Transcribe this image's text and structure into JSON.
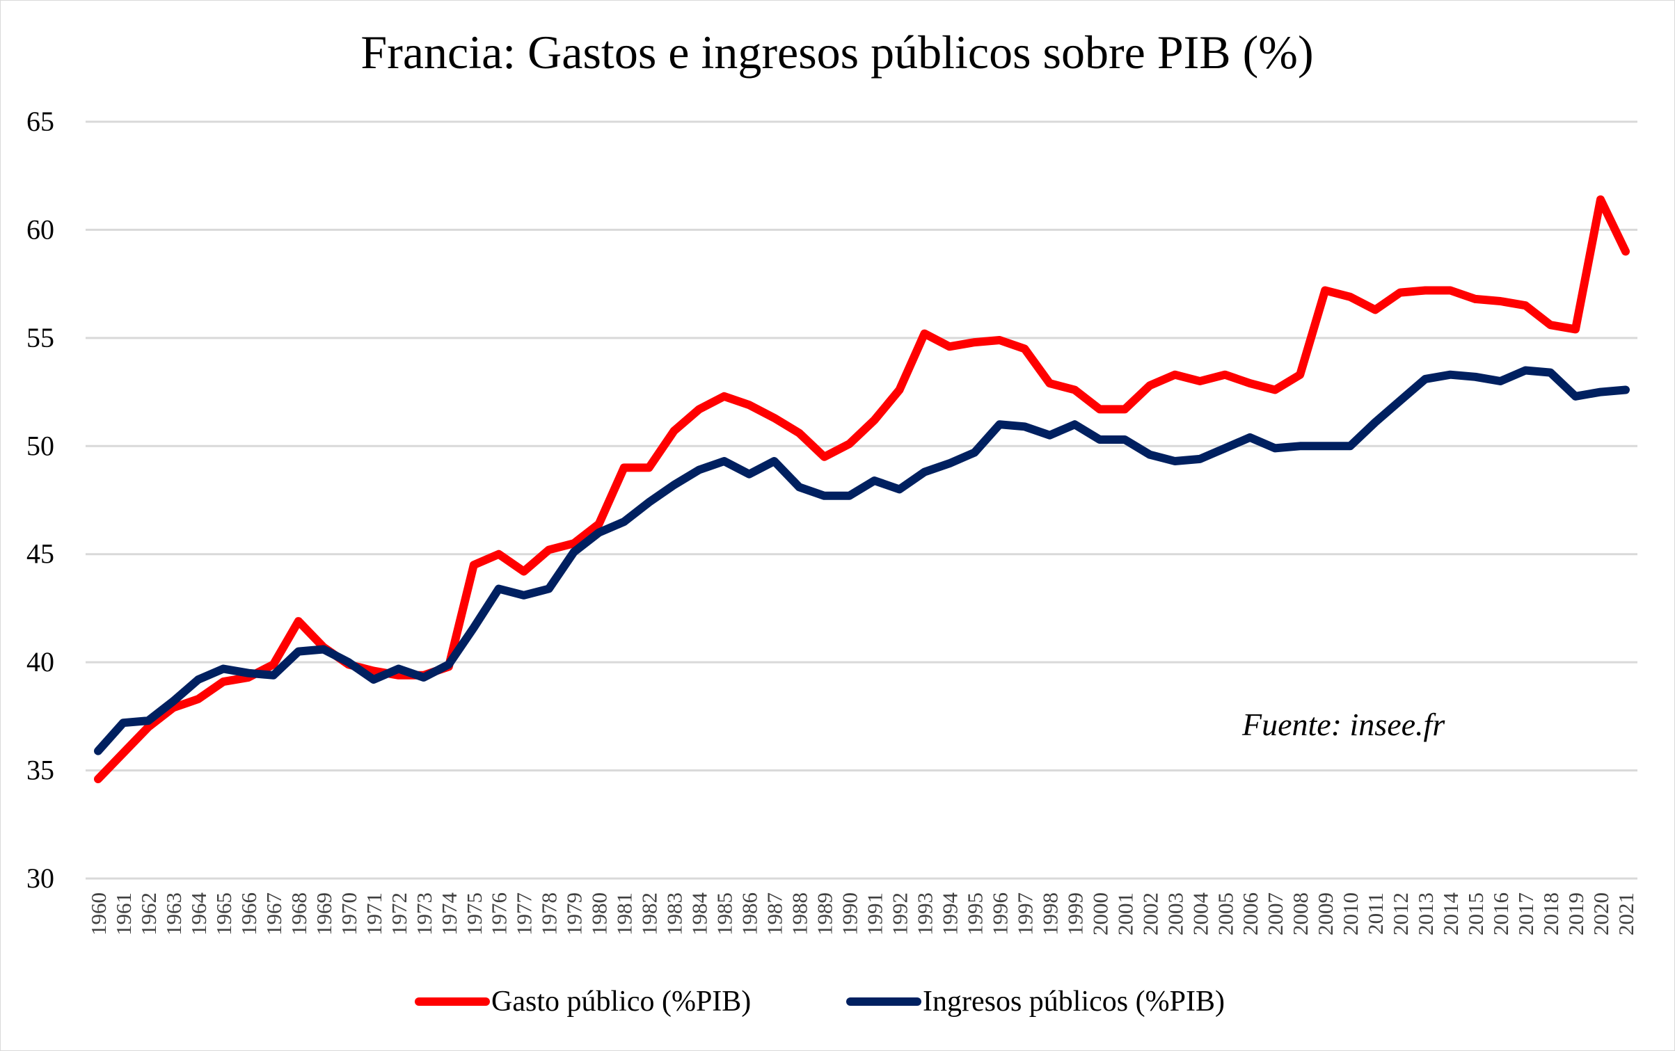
{
  "chart_data": {
    "type": "line",
    "title": "Francia: Gastos e ingresos públicos sobre PIB (%)",
    "xlabel": "",
    "ylabel": "",
    "ylim": [
      30,
      65
    ],
    "yticks": [
      30,
      35,
      40,
      45,
      50,
      55,
      60,
      65
    ],
    "grid": true,
    "legend_position": "bottom",
    "annotation": "Fuente: insee.fr",
    "x": [
      1960,
      1961,
      1962,
      1963,
      1964,
      1965,
      1966,
      1967,
      1968,
      1969,
      1970,
      1971,
      1972,
      1973,
      1974,
      1975,
      1976,
      1977,
      1978,
      1979,
      1980,
      1981,
      1982,
      1983,
      1984,
      1985,
      1986,
      1987,
      1988,
      1989,
      1990,
      1991,
      1992,
      1993,
      1994,
      1995,
      1996,
      1997,
      1998,
      1999,
      2000,
      2001,
      2002,
      2003,
      2004,
      2005,
      2006,
      2007,
      2008,
      2009,
      2010,
      2011,
      2012,
      2013,
      2014,
      2015,
      2016,
      2017,
      2018,
      2019,
      2020,
      2021
    ],
    "series": [
      {
        "name": "Gasto público (%PIB)",
        "color": "#FF0000",
        "values": [
          34.6,
          35.8,
          37.0,
          37.9,
          38.3,
          39.1,
          39.3,
          39.9,
          41.9,
          40.7,
          39.9,
          39.6,
          39.4,
          39.4,
          39.8,
          44.5,
          45.0,
          44.2,
          45.2,
          45.5,
          46.4,
          49.0,
          49.0,
          50.7,
          51.7,
          52.3,
          51.9,
          51.3,
          50.6,
          49.5,
          50.1,
          51.2,
          52.6,
          55.2,
          54.6,
          54.8,
          54.9,
          54.5,
          52.9,
          52.6,
          51.7,
          51.7,
          52.8,
          53.3,
          53.0,
          53.3,
          52.9,
          52.6,
          53.3,
          57.2,
          56.9,
          56.3,
          57.1,
          57.2,
          57.2,
          56.8,
          56.7,
          56.5,
          55.6,
          55.4,
          61.4,
          59.0
        ]
      },
      {
        "name": "Ingresos públicos (%PIB)",
        "color": "#002060",
        "values": [
          35.9,
          37.2,
          37.3,
          38.2,
          39.2,
          39.7,
          39.5,
          39.4,
          40.5,
          40.6,
          40.0,
          39.2,
          39.7,
          39.3,
          39.9,
          41.6,
          43.4,
          43.1,
          43.4,
          45.1,
          46.0,
          46.5,
          47.4,
          48.2,
          48.9,
          49.3,
          48.7,
          49.3,
          48.1,
          47.7,
          47.7,
          48.4,
          48.0,
          48.8,
          49.2,
          49.7,
          51.0,
          50.9,
          50.5,
          51.0,
          50.3,
          50.3,
          49.6,
          49.3,
          49.4,
          49.9,
          50.4,
          49.9,
          50.0,
          50.0,
          50.0,
          51.1,
          52.1,
          53.1,
          53.3,
          53.2,
          53.0,
          53.5,
          53.4,
          52.3,
          52.5,
          52.6
        ]
      }
    ]
  }
}
